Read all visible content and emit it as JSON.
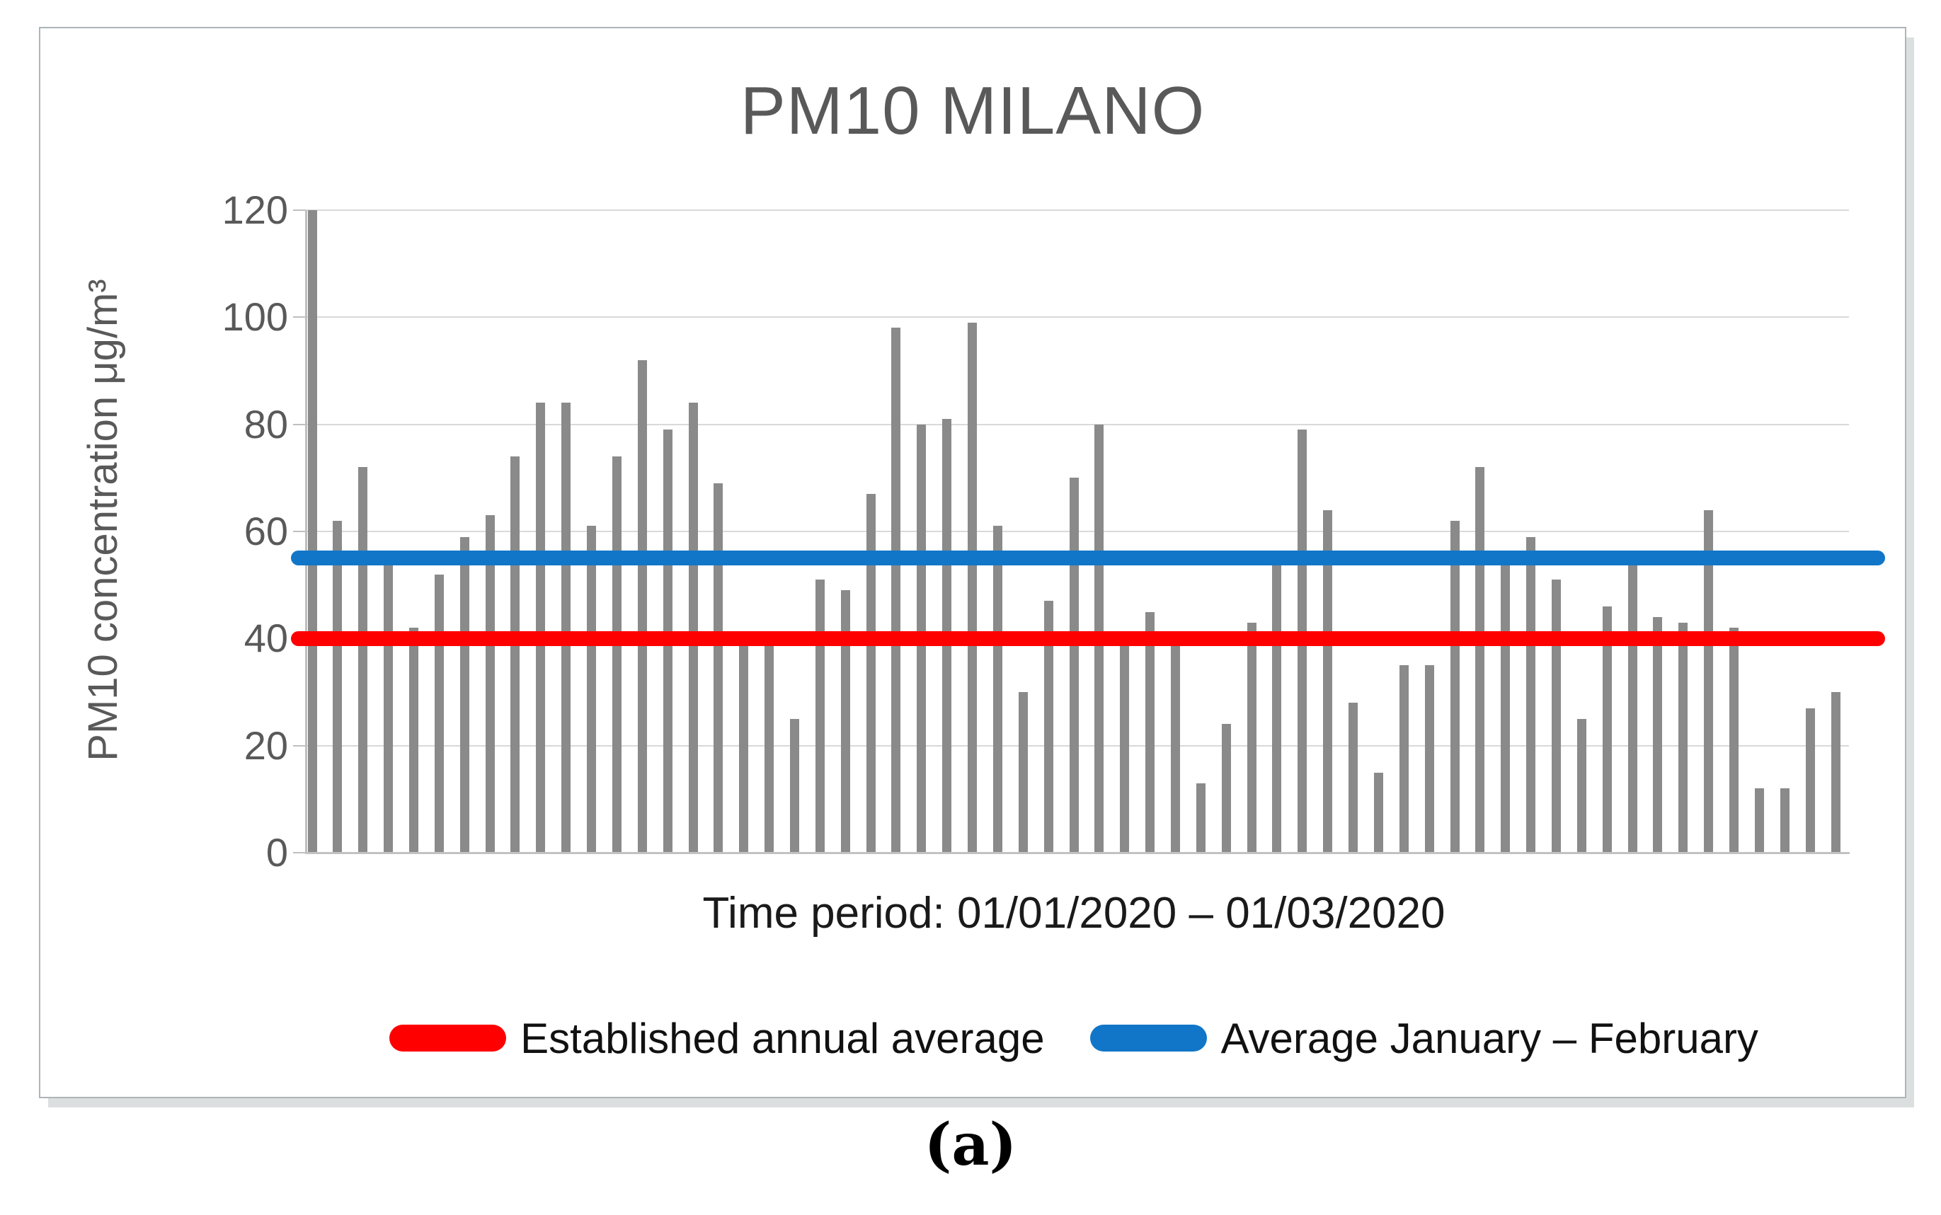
{
  "figure": {
    "title": "PM10 MILANO",
    "x_axis_label": "Time period: 01/01/2020 – 01/03/2020",
    "y_axis_label": "PM10 concentration μg/m³",
    "caption": "(a)"
  },
  "legend": {
    "items": [
      {
        "label": "Established annual average",
        "color": "#ff0000"
      },
      {
        "label": "Average January – February",
        "color": "#1176c8"
      }
    ]
  },
  "colors": {
    "bar": "#8a8a8a",
    "gridline": "#d9d9d9",
    "axis": "#bfbfbf",
    "title_text": "#595959",
    "tick_text": "#595959",
    "body_text": "#1a1a1a",
    "panel_border": "#aeb4b7",
    "panel_shadow": "#dcdfe0",
    "red_line": "#ff0000",
    "blue_line": "#1176c8"
  },
  "chart_data": {
    "type": "bar",
    "title": "PM10 MILANO",
    "xlabel": "Time period: 01/01/2020 – 01/03/2020",
    "ylabel": "PM10 concentration μg/m³",
    "ylim": [
      0,
      120
    ],
    "y_ticks": [
      0,
      20,
      40,
      60,
      80,
      100,
      120
    ],
    "grid": true,
    "legend_position": "bottom",
    "bar_color": "#8a8a8a",
    "values": [
      120,
      62,
      72,
      54,
      42,
      52,
      59,
      63,
      74,
      84,
      84,
      61,
      74,
      92,
      79,
      84,
      69,
      40,
      40,
      25,
      51,
      49,
      67,
      98,
      80,
      81,
      99,
      61,
      30,
      47,
      70,
      80,
      40,
      45,
      40,
      13,
      24,
      43,
      55,
      79,
      64,
      28,
      15,
      35,
      35,
      62,
      72,
      54,
      59,
      51,
      25,
      46,
      54,
      44,
      43,
      64,
      42,
      12,
      12,
      27,
      30
    ],
    "reference_lines": [
      {
        "name": "Established annual average",
        "value": 40,
        "color": "#ff0000"
      },
      {
        "name": "Average January – February",
        "value": 55,
        "color": "#1176c8"
      }
    ]
  }
}
